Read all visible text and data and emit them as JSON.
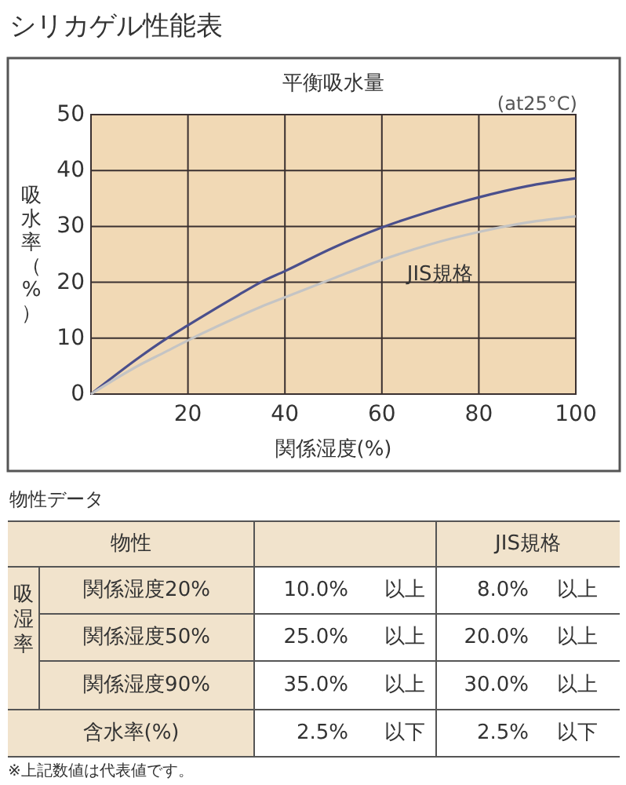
{
  "chart_data": {
    "type": "line",
    "title": "シリカゲル性能表",
    "subtitle": "平衡吸水量",
    "xlabel": "関係湿度(%)",
    "ylabel": "吸水率（%）",
    "x": [
      0,
      10,
      15,
      20,
      30,
      35,
      40,
      50,
      60,
      70,
      80,
      90,
      100
    ],
    "series": [
      {
        "color": "#4a4f8c",
        "values": [
          0,
          6.6,
          9.6,
          12.3,
          17.5,
          20,
          22,
          26.2,
          29.8,
          32.7,
          35.2,
          37.2,
          38.6
        ]
      },
      {
        "name": "JIS規格",
        "color": "#c4c4c4",
        "values": [
          0,
          5.2,
          7.4,
          9.6,
          13.7,
          15.6,
          17.3,
          20.7,
          24,
          26.8,
          29,
          30.7,
          31.8
        ]
      }
    ],
    "xlim": [
      0,
      100
    ],
    "ylim": [
      0,
      50
    ],
    "xticks": [
      {
        "value": 0,
        "label": null
      },
      20,
      40,
      60,
      80,
      100
    ],
    "yticks": [
      0,
      10,
      20,
      30,
      40,
      50
    ],
    "grid": true,
    "marker": "none",
    "line_style": "solid",
    "annotations": [
      "(at25°C)",
      "物性データ",
      "物性",
      "JIS規格",
      "吸湿率",
      "関係湿度20%",
      "10.0%",
      "以上",
      "8.0%",
      "以上",
      "関係湿度50%",
      "25.0%",
      "以上",
      "20.0%",
      "以上",
      "関係湿度90%",
      "35.0%",
      "以上",
      "30.0%",
      "以上",
      "含水率(%)",
      "2.5%",
      "以下",
      "2.5%",
      "以下",
      "※上記数値は代表値です。"
    ]
  }
}
